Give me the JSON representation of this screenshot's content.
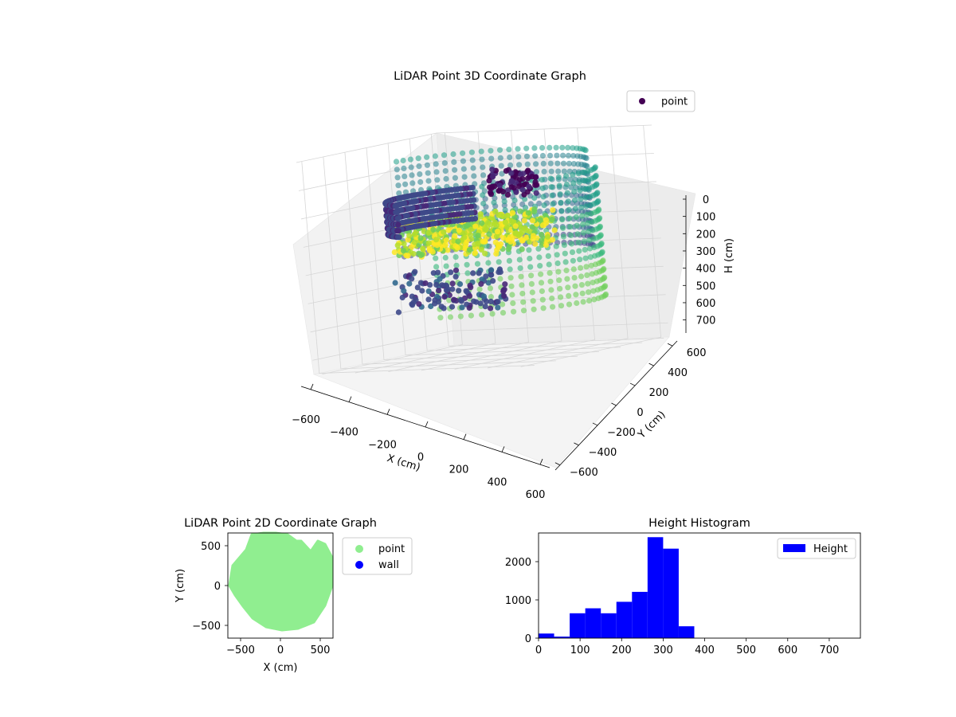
{
  "chart_data": [
    {
      "type": "scatter",
      "projection": "3d",
      "title": "LiDAR Point 3D Coordinate Graph",
      "xlabel": "X (cm)",
      "ylabel": "Y (cm)",
      "zlabel": "H (cm)",
      "xlim": [
        -650,
        650
      ],
      "ylim": [
        -650,
        650
      ],
      "zlim": [
        750,
        0
      ],
      "xticks": [
        -600,
        -400,
        -200,
        0,
        200,
        400,
        600
      ],
      "yticks": [
        -600,
        -400,
        -200,
        0,
        200,
        400,
        600
      ],
      "zticks": [
        0,
        100,
        200,
        300,
        400,
        500,
        600,
        700
      ],
      "colormap": "viridis",
      "grid": true,
      "legend": {
        "position": "top-right",
        "entries": [
          {
            "label": "point",
            "color": "#440154"
          }
        ]
      },
      "series": [
        {
          "name": "point",
          "color": "#440154"
        }
      ]
    },
    {
      "type": "scatter",
      "title": "LiDAR Point 2D Coordinate Graph",
      "xlabel": "X (cm)",
      "ylabel": "Y (cm)",
      "xlim": [
        -660,
        660
      ],
      "ylim": [
        -660,
        660
      ],
      "xticks": [
        -500,
        0,
        500
      ],
      "yticks": [
        -500,
        0,
        500
      ],
      "legend": {
        "position": "outside-right",
        "entries": [
          {
            "label": "point",
            "color": "#90ee90"
          },
          {
            "label": "wall",
            "color": "#0000ff"
          }
        ]
      },
      "series": [
        {
          "name": "point",
          "color": "#90ee90"
        },
        {
          "name": "wall",
          "color": "#0000ff"
        }
      ]
    },
    {
      "type": "bar",
      "subtype": "histogram",
      "title": "Height Histogram",
      "xlabel": "",
      "ylabel": "",
      "xlim": [
        0,
        775
      ],
      "ylim": [
        0,
        2750
      ],
      "xticks": [
        0,
        100,
        200,
        300,
        400,
        500,
        600,
        700
      ],
      "yticks": [
        0,
        1000,
        2000
      ],
      "bin_edges": [
        0,
        37.5,
        75,
        112.5,
        150,
        187.5,
        225,
        262.5,
        300,
        337.5,
        375,
        412.5,
        450,
        487.5,
        525,
        562.5,
        600,
        637.5,
        675,
        712.5,
        750
      ],
      "values": [
        120,
        40,
        650,
        780,
        650,
        950,
        1210,
        2640,
        2340,
        310,
        0,
        0,
        0,
        0,
        0,
        0,
        0,
        0,
        0,
        0
      ],
      "color": "#0000ff",
      "legend": {
        "position": "top-right",
        "entries": [
          {
            "label": "Height",
            "color": "#0000ff"
          }
        ]
      },
      "series": [
        {
          "name": "Height",
          "color": "#0000ff"
        }
      ]
    }
  ]
}
